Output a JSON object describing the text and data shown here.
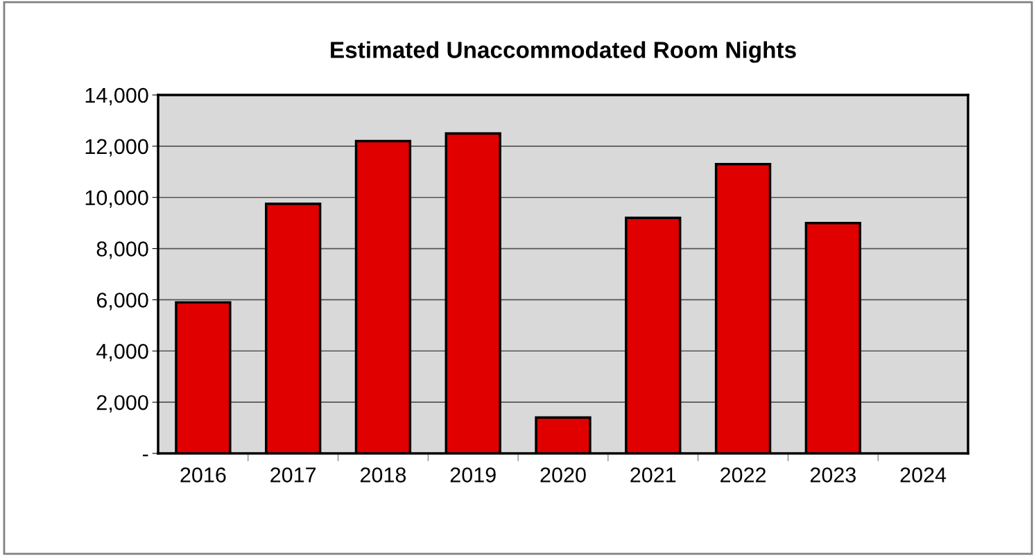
{
  "chart_data": {
    "type": "bar",
    "title": "Estimated Unaccommodated Room Nights",
    "categories": [
      "2016",
      "2017",
      "2018",
      "2019",
      "2020",
      "2021",
      "2022",
      "2023",
      "2024"
    ],
    "values": [
      5900,
      9750,
      12200,
      12500,
      1400,
      9200,
      11300,
      9000,
      null
    ],
    "color": "#e00000",
    "ylim": [
      0,
      14000
    ],
    "yticks": [
      {
        "value": 0,
        "label": "-"
      },
      {
        "value": 2000,
        "label": "2,000"
      },
      {
        "value": 4000,
        "label": "4,000"
      },
      {
        "value": 6000,
        "label": "6,000"
      },
      {
        "value": 8000,
        "label": "8,000"
      },
      {
        "value": 10000,
        "label": "10,000"
      },
      {
        "value": 12000,
        "label": "12,000"
      },
      {
        "value": 14000,
        "label": "14,000"
      }
    ],
    "grid": "y",
    "legend": false
  }
}
